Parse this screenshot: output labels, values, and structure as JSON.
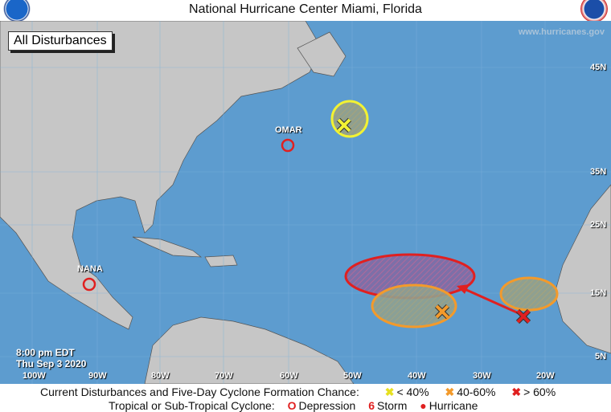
{
  "header": {
    "title": "National Hurricane Center  Miami, Florida",
    "left_logo": "noaa-logo",
    "right_logo": "nws-logo"
  },
  "map": {
    "product_label": "All Disturbances",
    "watermark": "www.hurricanes.gov",
    "timestamp_time": "8:00 pm EDT",
    "timestamp_date": "Thu Sep 3 2020",
    "longitude_labels": [
      "100W",
      "90W",
      "80W",
      "70W",
      "60W",
      "50W",
      "40W",
      "30W",
      "20W"
    ],
    "latitude_labels": [
      "45N",
      "35N",
      "25N",
      "15N",
      "5N"
    ],
    "storms": [
      {
        "name": "OMAR",
        "type": "Depression"
      },
      {
        "name": "NANA",
        "type": "Depression"
      }
    ],
    "disturbances": [
      {
        "chance": "< 40%",
        "color": "#f2f233"
      },
      {
        "chance": "40-60%",
        "color": "#f39a2b"
      },
      {
        "chance": "> 60%",
        "color": "#e02020"
      }
    ]
  },
  "legend": {
    "formation_label": "Current Disturbances and Five-Day Cyclone Formation Chance:",
    "low": "< 40%",
    "medium": "40-60%",
    "high": "> 60%",
    "cyclone_label": "Tropical or Sub-Tropical Cyclone:",
    "depression": "Depression",
    "storm": "Storm",
    "hurricane": "Hurricane"
  },
  "colors": {
    "ocean": "#5d9ccf",
    "land": "#c6c6c6",
    "low": "#f2f233",
    "medium": "#f39a2b",
    "high": "#e02020"
  }
}
